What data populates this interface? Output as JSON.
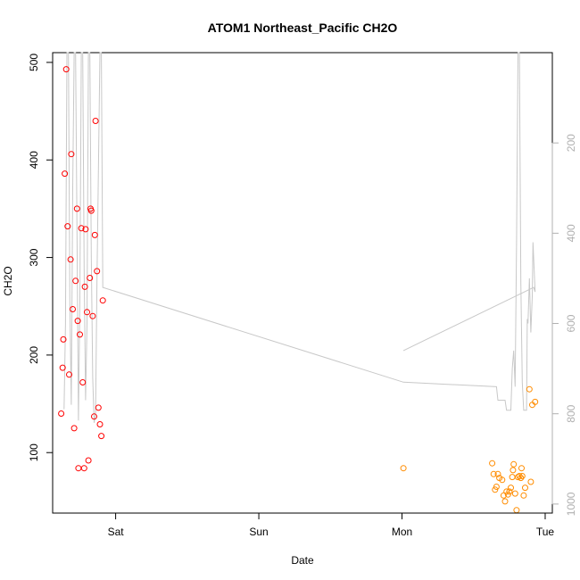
{
  "chart_data": {
    "type": "scatter",
    "title": "ATOM1 Northeast_Pacific CH2O",
    "xlabel": "Date",
    "ylabel": "CH2O",
    "x_ticks": [
      "Sat",
      "Sun",
      "Mon",
      "Tue"
    ],
    "x_tick_values": [
      1,
      2,
      3,
      4
    ],
    "xlim": [
      0.56,
      4.05
    ],
    "ylim": [
      38,
      510
    ],
    "y_ticks": [
      100,
      200,
      300,
      400,
      500
    ],
    "y2_ticks": [
      200,
      400,
      600,
      800,
      1000
    ],
    "y2lim": [
      1020,
      0
    ],
    "grid": false,
    "legend": "none",
    "colors": {
      "series_a": "#ff0000",
      "series_b": "#ff8c00",
      "altitude": "#c8c8c8",
      "axis": "#000000",
      "right_axis": "#b0b0b0"
    },
    "series": [
      {
        "color": "#ff0000",
        "points": [
          [
            0.62,
            140
          ],
          [
            0.63,
            187
          ],
          [
            0.635,
            216
          ],
          [
            0.645,
            386
          ],
          [
            0.655,
            493
          ],
          [
            0.665,
            332
          ],
          [
            0.675,
            180
          ],
          [
            0.685,
            298
          ],
          [
            0.69,
            406
          ],
          [
            0.7,
            247
          ],
          [
            0.71,
            125
          ],
          [
            0.72,
            276
          ],
          [
            0.73,
            350
          ],
          [
            0.735,
            235
          ],
          [
            0.74,
            84
          ],
          [
            0.75,
            221
          ],
          [
            0.76,
            330
          ],
          [
            0.77,
            172
          ],
          [
            0.78,
            84
          ],
          [
            0.785,
            270
          ],
          [
            0.79,
            329
          ],
          [
            0.8,
            244
          ],
          [
            0.81,
            92
          ],
          [
            0.82,
            279
          ],
          [
            0.825,
            350
          ],
          [
            0.83,
            348
          ],
          [
            0.84,
            240
          ],
          [
            0.85,
            137
          ],
          [
            0.855,
            323
          ],
          [
            0.86,
            440
          ],
          [
            0.87,
            286
          ],
          [
            0.88,
            146
          ],
          [
            0.89,
            129
          ],
          [
            0.9,
            117
          ],
          [
            0.91,
            256
          ]
        ]
      },
      {
        "color": "#ff8c00",
        "points": [
          [
            3.01,
            84
          ],
          [
            3.63,
            89
          ],
          [
            3.64,
            78
          ],
          [
            3.65,
            62
          ],
          [
            3.66,
            65
          ],
          [
            3.67,
            78
          ],
          [
            3.68,
            74
          ],
          [
            3.7,
            72
          ],
          [
            3.71,
            56
          ],
          [
            3.72,
            50
          ],
          [
            3.73,
            60
          ],
          [
            3.74,
            57
          ],
          [
            3.75,
            60
          ],
          [
            3.76,
            64
          ],
          [
            3.77,
            75
          ],
          [
            3.775,
            82
          ],
          [
            3.78,
            88
          ],
          [
            3.79,
            58
          ],
          [
            3.8,
            41
          ],
          [
            3.81,
            75
          ],
          [
            3.82,
            76
          ],
          [
            3.83,
            74
          ],
          [
            3.835,
            84
          ],
          [
            3.84,
            76
          ],
          [
            3.85,
            56
          ],
          [
            3.86,
            64
          ],
          [
            3.89,
            165
          ],
          [
            3.9,
            70
          ],
          [
            3.91,
            149
          ],
          [
            3.93,
            152
          ]
        ]
      }
    ],
    "altitude_line": [
      [
        0.64,
        790
      ],
      [
        0.65,
        600
      ],
      [
        0.66,
        0
      ],
      [
        0.67,
        0
      ],
      [
        0.68,
        560
      ],
      [
        0.69,
        780
      ],
      [
        0.7,
        300
      ],
      [
        0.71,
        0
      ],
      [
        0.72,
        0
      ],
      [
        0.73,
        400
      ],
      [
        0.74,
        815
      ],
      [
        0.75,
        550
      ],
      [
        0.76,
        0
      ],
      [
        0.77,
        0
      ],
      [
        0.78,
        480
      ],
      [
        0.79,
        770
      ],
      [
        0.8,
        600
      ],
      [
        0.81,
        0
      ],
      [
        0.82,
        0
      ],
      [
        0.83,
        450
      ],
      [
        0.84,
        720
      ],
      [
        0.85,
        820
      ],
      [
        0.86,
        800
      ],
      [
        0.87,
        500
      ],
      [
        0.88,
        260
      ],
      [
        0.89,
        0
      ],
      [
        0.9,
        0
      ],
      [
        0.91,
        520
      ],
      [
        3.01,
        730
      ],
      [
        3.66,
        740
      ],
      [
        3.67,
        770
      ],
      [
        3.72,
        770
      ],
      [
        3.73,
        792
      ],
      [
        3.76,
        792
      ],
      [
        3.77,
        700
      ],
      [
        3.78,
        660
      ],
      [
        3.79,
        740
      ],
      [
        3.8,
        420
      ],
      [
        3.81,
        0
      ],
      [
        3.815,
        0
      ],
      [
        3.82,
        0
      ],
      [
        3.83,
        510
      ],
      [
        3.84,
        730
      ],
      [
        3.85,
        792
      ],
      [
        3.87,
        792
      ],
      [
        3.875,
        590
      ],
      [
        3.88,
        600
      ],
      [
        3.89,
        500
      ],
      [
        3.9,
        620
      ],
      [
        3.91,
        540
      ],
      [
        3.915,
        420
      ],
      [
        3.93,
        530
      ],
      [
        3.92,
        520
      ],
      [
        3.01,
        660
      ]
    ]
  }
}
